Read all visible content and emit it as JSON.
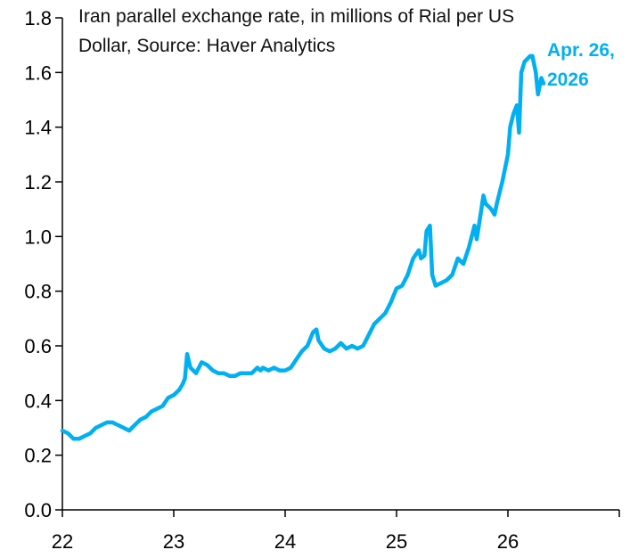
{
  "chart_data": {
    "type": "line",
    "title_lines": [
      "Iran parallel exchange rate, in millions of Rial per US",
      "Dollar, Source: Haver Analytics"
    ],
    "xlabel": "",
    "ylabel": "",
    "xlim": [
      22,
      27
    ],
    "ylim": [
      0,
      1.8
    ],
    "grid": false,
    "x_ticks": [
      22,
      23,
      24,
      25,
      26
    ],
    "x_tick_labels": [
      "22",
      "23",
      "24",
      "25",
      "26"
    ],
    "y_ticks": [
      0.0,
      0.2,
      0.4,
      0.6,
      0.8,
      1.0,
      1.2,
      1.4,
      1.6,
      1.8
    ],
    "y_tick_labels": [
      "0.0",
      "0.2",
      "0.4",
      "0.6",
      "0.8",
      "1.0",
      "1.2",
      "1.4",
      "1.6",
      "1.8"
    ],
    "annotation_lines": [
      "Apr. 26,",
      "2026"
    ],
    "series": [
      {
        "name": "Iran parallel exchange rate",
        "color": "#00B0F0",
        "x": [
          22.0,
          22.05,
          22.1,
          22.15,
          22.2,
          22.25,
          22.3,
          22.35,
          22.4,
          22.45,
          22.5,
          22.55,
          22.6,
          22.65,
          22.7,
          22.75,
          22.8,
          22.85,
          22.9,
          22.95,
          23.0,
          23.05,
          23.08,
          23.1,
          23.12,
          23.15,
          23.2,
          23.25,
          23.3,
          23.35,
          23.4,
          23.45,
          23.5,
          23.55,
          23.6,
          23.65,
          23.7,
          23.75,
          23.78,
          23.8,
          23.85,
          23.9,
          23.95,
          24.0,
          24.05,
          24.1,
          24.15,
          24.2,
          24.25,
          24.28,
          24.3,
          24.35,
          24.4,
          24.45,
          24.5,
          24.55,
          24.6,
          24.65,
          24.7,
          24.75,
          24.8,
          24.85,
          24.9,
          24.95,
          25.0,
          25.05,
          25.1,
          25.15,
          25.2,
          25.22,
          25.25,
          25.27,
          25.3,
          25.32,
          25.35,
          25.4,
          25.45,
          25.5,
          25.55,
          25.6,
          25.65,
          25.7,
          25.72,
          25.75,
          25.78,
          25.8,
          25.85,
          25.88,
          25.9,
          25.95,
          26.0,
          26.02,
          26.05,
          26.08,
          26.1,
          26.12,
          26.15,
          26.2,
          26.22,
          26.25,
          26.27,
          26.3,
          26.32
        ],
        "values": [
          0.29,
          0.28,
          0.26,
          0.26,
          0.27,
          0.28,
          0.3,
          0.31,
          0.32,
          0.32,
          0.31,
          0.3,
          0.29,
          0.31,
          0.33,
          0.34,
          0.36,
          0.37,
          0.38,
          0.41,
          0.42,
          0.44,
          0.46,
          0.48,
          0.57,
          0.52,
          0.5,
          0.54,
          0.53,
          0.51,
          0.5,
          0.5,
          0.49,
          0.49,
          0.5,
          0.5,
          0.5,
          0.52,
          0.51,
          0.52,
          0.51,
          0.52,
          0.51,
          0.51,
          0.52,
          0.55,
          0.58,
          0.6,
          0.65,
          0.66,
          0.62,
          0.59,
          0.58,
          0.59,
          0.61,
          0.59,
          0.6,
          0.59,
          0.6,
          0.64,
          0.68,
          0.7,
          0.72,
          0.76,
          0.81,
          0.82,
          0.86,
          0.92,
          0.95,
          0.92,
          0.93,
          1.02,
          1.04,
          0.86,
          0.82,
          0.83,
          0.84,
          0.86,
          0.92,
          0.9,
          0.96,
          1.04,
          0.99,
          1.07,
          1.15,
          1.12,
          1.1,
          1.08,
          1.12,
          1.2,
          1.3,
          1.4,
          1.45,
          1.48,
          1.38,
          1.6,
          1.64,
          1.66,
          1.66,
          1.6,
          1.52,
          1.58,
          1.56
        ]
      }
    ]
  }
}
